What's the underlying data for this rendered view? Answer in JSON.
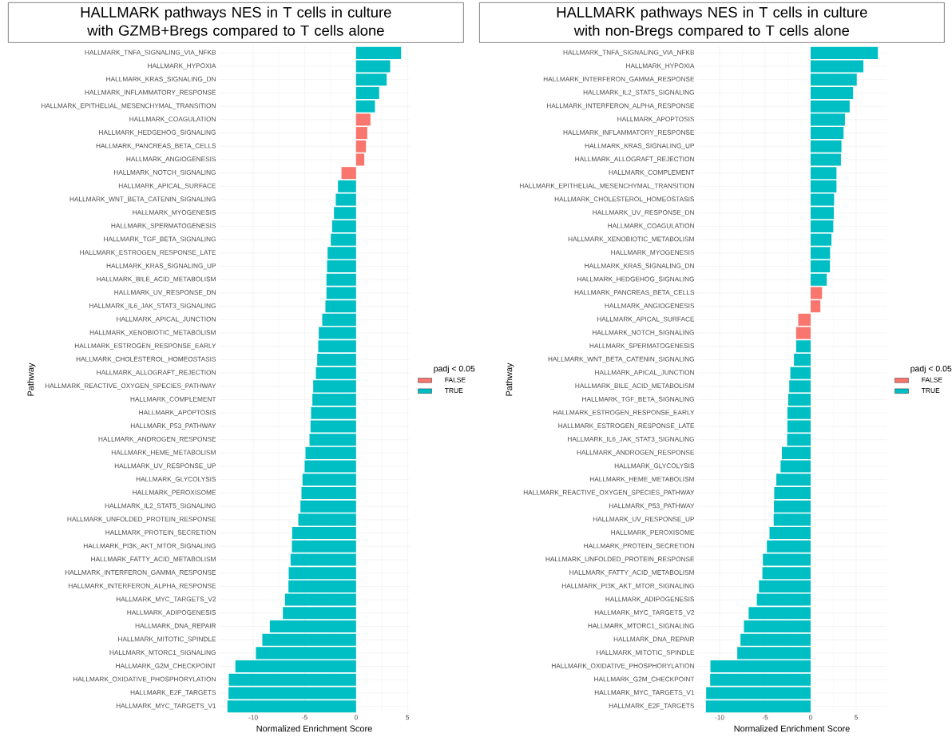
{
  "chart_data": [
    {
      "type": "bar",
      "orientation": "horizontal",
      "title": "HALLMARK pathways NES in T cells in culture with GZMB+Bregs compared to T cells alone",
      "xlabel": "Normalized Enrichment Score",
      "ylabel": "Pathway",
      "legend_title": "padj < 0.05",
      "legend": "right",
      "grid": true,
      "xlim": [
        -13.35,
        5.22
      ],
      "xticks": [
        -10,
        -5,
        0,
        5
      ],
      "categories": [
        "HALLMARK_TNFA_SIGNALING_VIA_NFKB",
        "HALLMARK_HYPOXIA",
        "HALLMARK_KRAS_SIGNALING_DN",
        "HALLMARK_INFLAMMATORY_RESPONSE",
        "HALLMARK_EPITHELIAL_MESENCHYMAL_TRANSITION",
        "HALLMARK_COAGULATION",
        "HALLMARK_HEDGEHOG_SIGNALING",
        "HALLMARK_PANCREAS_BETA_CELLS",
        "HALLMARK_ANGIOGENESIS",
        "HALLMARK_NOTCH_SIGNALING",
        "HALLMARK_APICAL_SURFACE",
        "HALLMARK_WNT_BETA_CATENIN_SIGNALING",
        "HALLMARK_MYOGENESIS",
        "HALLMARK_SPERMATOGENESIS",
        "HALLMARK_TGF_BETA_SIGNALING",
        "HALLMARK_ESTROGEN_RESPONSE_LATE",
        "HALLMARK_KRAS_SIGNALING_UP",
        "HALLMARK_BILE_ACID_METABOLISM",
        "HALLMARK_UV_RESPONSE_DN",
        "HALLMARK_IL6_JAK_STAT3_SIGNALING",
        "HALLMARK_APICAL_JUNCTION",
        "HALLMARK_XENOBIOTIC_METABOLISM",
        "HALLMARK_ESTROGEN_RESPONSE_EARLY",
        "HALLMARK_CHOLESTEROL_HOMEOSTASIS",
        "HALLMARK_ALLOGRAFT_REJECTION",
        "HALLMARK_REACTIVE_OXYGEN_SPECIES_PATHWAY",
        "HALLMARK_COMPLEMENT",
        "HALLMARK_APOPTOSIS",
        "HALLMARK_P53_PATHWAY",
        "HALLMARK_ANDROGEN_RESPONSE",
        "HALLMARK_HEME_METABOLISM",
        "HALLMARK_UV_RESPONSE_UP",
        "HALLMARK_GLYCOLYSIS",
        "HALLMARK_PEROXISOME",
        "HALLMARK_IL2_STAT5_SIGNALING",
        "HALLMARK_UNFOLDED_PROTEIN_RESPONSE",
        "HALLMARK_PROTEIN_SECRETION",
        "HALLMARK_PI3K_AKT_MTOR_SIGNALING",
        "HALLMARK_FATTY_ACID_METABOLISM",
        "HALLMARK_INTERFERON_GAMMA_RESPONSE",
        "HALLMARK_INTERFERON_ALPHA_RESPONSE",
        "HALLMARK_MYC_TARGETS_V2",
        "HALLMARK_ADIPOGENESIS",
        "HALLMARK_DNA_REPAIR",
        "HALLMARK_MITOTIC_SPINDLE",
        "HALLMARK_MTORC1_SIGNALING",
        "HALLMARK_G2M_CHECKPOINT",
        "HALLMARK_OXIDATIVE_PHOSPHORYLATION",
        "HALLMARK_E2F_TARGETS",
        "HALLMARK_MYC_TARGETS_V1"
      ],
      "series": [
        {
          "name": "FALSE",
          "color": "#f8766d",
          "values": [
            null,
            null,
            null,
            null,
            null,
            1.4,
            1.09,
            0.96,
            0.8,
            -1.42,
            null,
            null,
            null,
            null,
            null,
            null,
            null,
            null,
            null,
            null,
            null,
            null,
            null,
            null,
            null,
            null,
            null,
            null,
            null,
            null,
            null,
            null,
            null,
            null,
            null,
            null,
            null,
            null,
            null,
            null,
            null,
            null,
            null,
            null,
            null,
            null,
            null,
            null,
            null,
            null
          ]
        },
        {
          "name": "TRUE",
          "color": "#00bfc4",
          "values": [
            4.38,
            3.32,
            2.98,
            2.25,
            1.84,
            null,
            null,
            null,
            null,
            null,
            -1.76,
            -1.97,
            -2.15,
            -2.33,
            -2.46,
            -2.77,
            -2.82,
            -2.88,
            -2.88,
            -2.98,
            -3.29,
            -3.63,
            -3.68,
            -3.78,
            -3.91,
            -4.17,
            -4.25,
            -4.38,
            -4.43,
            -4.53,
            -4.92,
            -5.0,
            -5.21,
            -5.31,
            -5.41,
            -5.62,
            -6.22,
            -6.24,
            -6.37,
            -6.55,
            -6.58,
            -6.92,
            -7.12,
            -8.39,
            -9.12,
            -9.74,
            -11.74,
            -12.38,
            -12.41,
            -12.51
          ]
        }
      ]
    },
    {
      "type": "bar",
      "orientation": "horizontal",
      "title": "HALLMARK pathways NES in T cells in culture with non-Bregs compared to T cells alone",
      "xlabel": "Normalized Enrichment Score",
      "ylabel": "Pathway",
      "legend_title": "padj < 0.05",
      "legend": "right",
      "grid": true,
      "xlim": [
        -12.46,
        8.34
      ],
      "xticks": [
        -10,
        -5,
        0,
        5
      ],
      "categories": [
        "HALLMARK_TNFA_SIGNALING_VIA_NFKB",
        "HALLMARK_HYPOXIA",
        "HALLMARK_INTERFERON_GAMMA_RESPONSE",
        "HALLMARK_IL2_STAT5_SIGNALING",
        "HALLMARK_INTERFERON_ALPHA_RESPONSE",
        "HALLMARK_APOPTOSIS",
        "HALLMARK_INFLAMMATORY_RESPONSE",
        "HALLMARK_KRAS_SIGNALING_UP",
        "HALLMARK_ALLOGRAFT_REJECTION",
        "HALLMARK_COMPLEMENT",
        "HALLMARK_EPITHELIAL_MESENCHYMAL_TRANSITION",
        "HALLMARK_CHOLESTEROL_HOMEOSTASIS",
        "HALLMARK_UV_RESPONSE_DN",
        "HALLMARK_COAGULATION",
        "HALLMARK_XENOBIOTIC_METABOLISM",
        "HALLMARK_MYOGENESIS",
        "HALLMARK_KRAS_SIGNALING_DN",
        "HALLMARK_HEDGEHOG_SIGNALING",
        "HALLMARK_PANCREAS_BETA_CELLS",
        "HALLMARK_ANGIOGENESIS",
        "HALLMARK_APICAL_SURFACE",
        "HALLMARK_NOTCH_SIGNALING",
        "HALLMARK_SPERMATOGENESIS",
        "HALLMARK_WNT_BETA_CATENIN_SIGNALING",
        "HALLMARK_APICAL_JUNCTION",
        "HALLMARK_BILE_ACID_METABOLISM",
        "HALLMARK_TGF_BETA_SIGNALING",
        "HALLMARK_ESTROGEN_RESPONSE_EARLY",
        "HALLMARK_ESTROGEN_RESPONSE_LATE",
        "HALLMARK_IL6_JAK_STAT3_SIGNALING",
        "HALLMARK_ANDROGEN_RESPONSE",
        "HALLMARK_GLYCOLYSIS",
        "HALLMARK_HEME_METABOLISM",
        "HALLMARK_REACTIVE_OXYGEN_SPECIES_PATHWAY",
        "HALLMARK_P53_PATHWAY",
        "HALLMARK_UV_RESPONSE_UP",
        "HALLMARK_PEROXISOME",
        "HALLMARK_PROTEIN_SECRETION",
        "HALLMARK_UNFOLDED_PROTEIN_RESPONSE",
        "HALLMARK_FATTY_ACID_METABOLISM",
        "HALLMARK_PI3K_AKT_MTOR_SIGNALING",
        "HALLMARK_ADIPOGENESIS",
        "HALLMARK_MYC_TARGETS_V2",
        "HALLMARK_MTORC1_SIGNALING",
        "HALLMARK_DNA_REPAIR",
        "HALLMARK_MITOTIC_SPINDLE",
        "HALLMARK_OXIDATIVE_PHOSPHORYLATION",
        "HALLMARK_G2M_CHECKPOINT",
        "HALLMARK_MYC_TARGETS_V1",
        "HALLMARK_E2F_TARGETS"
      ],
      "series": [
        {
          "name": "FALSE",
          "color": "#f8766d",
          "values": [
            null,
            null,
            null,
            null,
            null,
            null,
            null,
            null,
            null,
            null,
            null,
            null,
            null,
            null,
            null,
            null,
            null,
            null,
            1.25,
            1.07,
            -1.36,
            -1.59,
            null,
            null,
            null,
            null,
            null,
            null,
            null,
            null,
            null,
            null,
            null,
            null,
            null,
            null,
            null,
            null,
            null,
            null,
            null,
            null,
            null,
            null,
            null,
            null,
            null,
            null,
            null,
            null
          ]
        },
        {
          "name": "TRUE",
          "color": "#00bfc4",
          "values": [
            7.39,
            5.8,
            5.07,
            4.67,
            4.29,
            3.77,
            3.62,
            3.39,
            3.33,
            2.84,
            2.84,
            2.58,
            2.55,
            2.49,
            2.29,
            2.14,
            2.12,
            1.77,
            null,
            null,
            null,
            null,
            -1.59,
            -1.83,
            -2.23,
            -2.35,
            -2.46,
            -2.55,
            -2.55,
            -2.58,
            -3.16,
            -3.3,
            -3.77,
            -4.0,
            -4.03,
            -4.06,
            -4.52,
            -4.81,
            -5.25,
            -5.3,
            -5.68,
            -5.91,
            -6.81,
            -7.33,
            -7.71,
            -8.06,
            -11.01,
            -11.04,
            -11.48,
            -11.51
          ]
        }
      ]
    }
  ]
}
